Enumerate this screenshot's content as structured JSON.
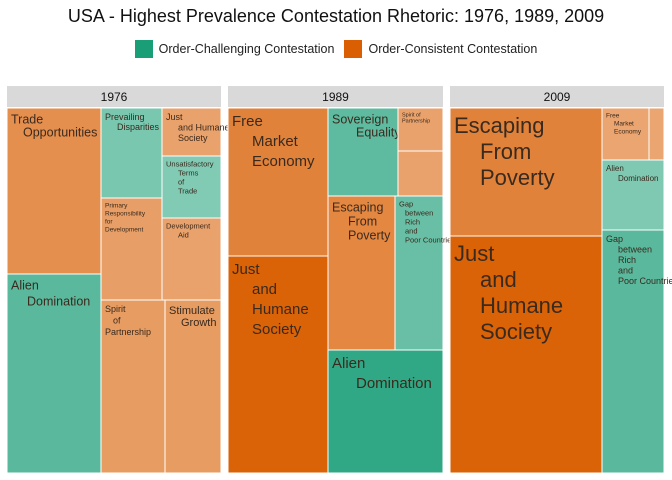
{
  "chart_data": {
    "type": "treemap",
    "title": "USA - Highest Prevalence Contestation Rhetoric: 1976, 1989, 2009",
    "legend": {
      "placement": "top",
      "entries": [
        {
          "name": "Order-Challenging Contestation",
          "color": "#1a9e77"
        },
        {
          "name": "Order-Consistent Contestation",
          "color": "#d95f02"
        }
      ]
    },
    "panels": [
      {
        "label": "1976",
        "items": [
          {
            "label": "Trade Opportunities",
            "category": "Order-Consistent Contestation",
            "shade": 0.7
          },
          {
            "label": "Alien Domination",
            "category": "Order-Challenging Contestation",
            "shade": 0.72
          },
          {
            "label": "Prevailing Disparities",
            "category": "Order-Challenging Contestation",
            "shade": 0.58
          },
          {
            "label": "Just and Humane Society",
            "category": "Order-Consistent Contestation",
            "shade": 0.58
          },
          {
            "label": "Unsatisfactory Terms of Trade",
            "category": "Order-Challenging Contestation",
            "shade": 0.55
          },
          {
            "label": "Primary Responsibility for Development",
            "category": "Order-Consistent Contestation",
            "shade": 0.6
          },
          {
            "label": "Development Aid",
            "category": "Order-Consistent Contestation",
            "shade": 0.58
          },
          {
            "label": "Spirit of Partnership",
            "category": "Order-Consistent Contestation",
            "shade": 0.62
          },
          {
            "label": "Stimulate Growth",
            "category": "Order-Consistent Contestation",
            "shade": 0.62
          }
        ]
      },
      {
        "label": "1989",
        "items": [
          {
            "label": "Free Market Economy",
            "category": "Order-Consistent Contestation",
            "shade": 0.78
          },
          {
            "label": "Just and Humane Society",
            "category": "Order-Consistent Contestation",
            "shade": 0.98
          },
          {
            "label": "Sovereign Equality",
            "category": "Order-Challenging Contestation",
            "shade": 0.7
          },
          {
            "label": "Spirit of Partnership",
            "category": "Order-Consistent Contestation",
            "shade": 0.58
          },
          {
            "label": "",
            "category": "Order-Consistent Contestation",
            "shade": 0.58
          },
          {
            "label": "Escaping From Poverty",
            "category": "Order-Consistent Contestation",
            "shade": 0.75
          },
          {
            "label": "Gap between Rich and Poor Countries",
            "category": "Order-Challenging Contestation",
            "shade": 0.66
          },
          {
            "label": "Alien Domination",
            "category": "Order-Challenging Contestation",
            "shade": 0.9
          }
        ]
      },
      {
        "label": "2009",
        "items": [
          {
            "label": "Escaping From Poverty",
            "category": "Order-Consistent Contestation",
            "shade": 0.78
          },
          {
            "label": "Free Market Economy",
            "category": "Order-Consistent Contestation",
            "shade": 0.56
          },
          {
            "label": "",
            "category": "Order-Consistent Contestation",
            "shade": 0.56
          },
          {
            "label": "Alien Domination",
            "category": "Order-Challenging Contestation",
            "shade": 0.56
          },
          {
            "label": "Just and Humane Society",
            "category": "Order-Consistent Contestation",
            "shade": 0.98
          },
          {
            "label": "Gap between Rich and Poor Countries",
            "category": "Order-Challenging Contestation",
            "shade": 0.72
          }
        ]
      }
    ]
  }
}
